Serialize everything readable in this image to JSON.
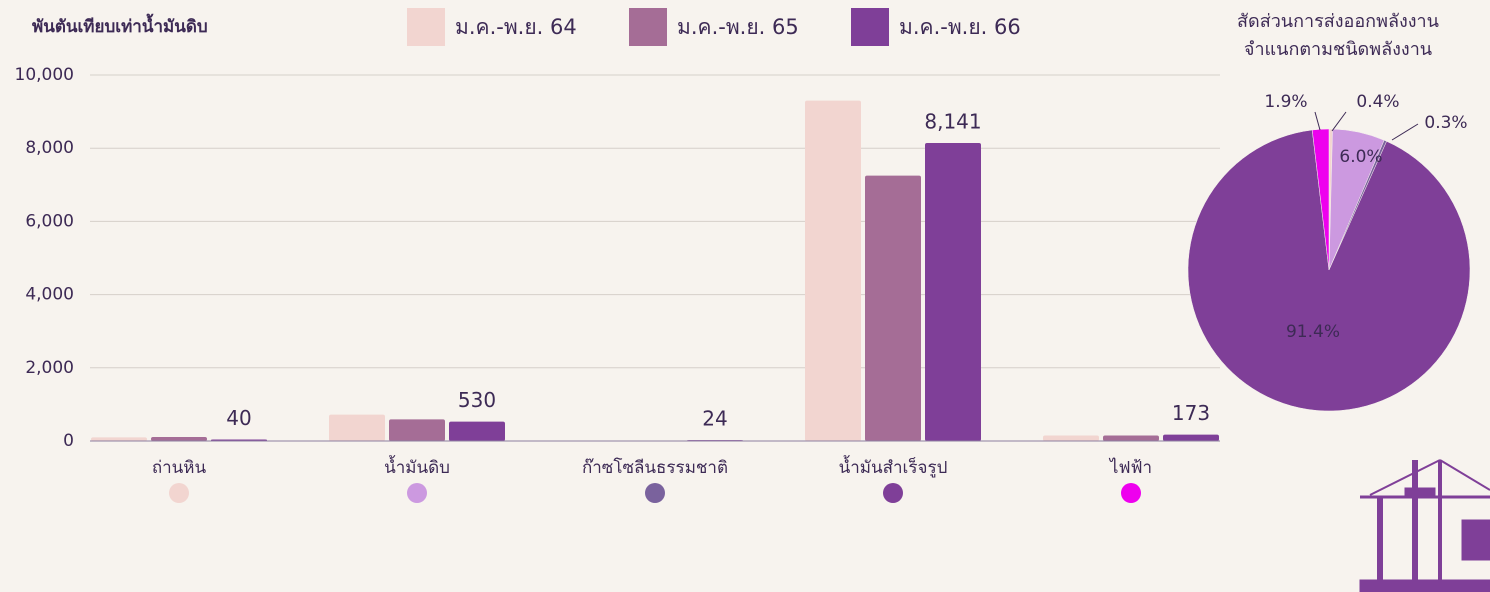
{
  "chart_data": [
    {
      "type": "bar",
      "y_axis_label": "พันตันเทียบเท่าน้ำมันดิบ",
      "categories": [
        "ถ่านหิน",
        "น้ำมันดิบ",
        "ก๊าซโซลีนธรรมชาติ",
        "น้ำมันสำเร็จรูป",
        "ไฟฟ้า"
      ],
      "series": [
        {
          "name": "ม.ค.-พ.ย. 64",
          "color": "#f2d5d0",
          "values": [
            100,
            720,
            10,
            9300,
            150
          ]
        },
        {
          "name": "ม.ค.-พ.ย. 65",
          "color": "#a56d96",
          "values": [
            110,
            590,
            10,
            7250,
            150
          ]
        },
        {
          "name": "ม.ค.-พ.ย. 66",
          "color": "#7f3f98",
          "values": [
            40,
            530,
            24,
            8141,
            173
          ],
          "value_labels": [
            "40",
            "530",
            "24",
            "8,141",
            "173"
          ]
        }
      ],
      "ylim": [
        0,
        10000
      ],
      "yticks": [
        0,
        {
          "value": 2000,
          "label": "2,000"
        },
        {
          "value": 4000,
          "label": "4,000"
        },
        {
          "value": 6000,
          "label": "6,000"
        },
        {
          "value": 8000,
          "label": "8,000"
        },
        {
          "value": 10000,
          "label": "10,000"
        }
      ],
      "grid": true
    },
    {
      "type": "pie",
      "title": [
        "สัดส่วนการส่งออกพลังงาน",
        "จำแนกตามชนิดพลังงาน"
      ],
      "values": [
        0.4,
        6.0,
        0.3,
        91.4,
        1.9
      ],
      "value_labels": [
        "0.4%",
        "6.0%",
        "0.3%",
        "91.4%",
        "1.9%"
      ],
      "colors": [
        "#f2d5d0",
        "#cc99e0",
        "#7a629d",
        "#7f3f98",
        "#ee00ee"
      ]
    }
  ]
}
